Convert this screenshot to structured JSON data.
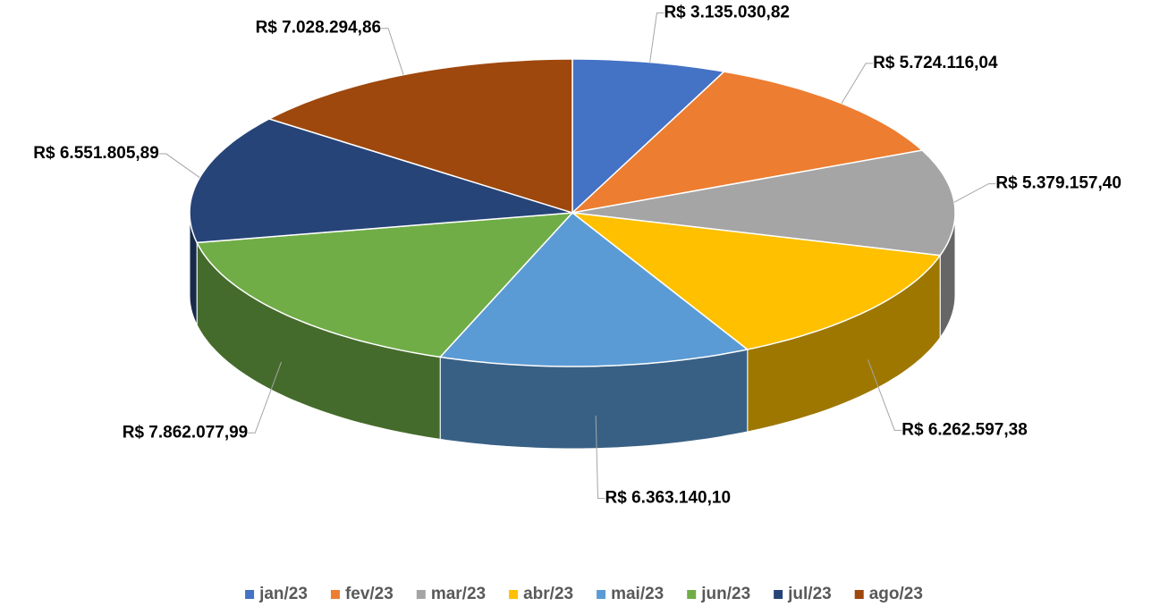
{
  "chart_data": {
    "type": "pie",
    "categories": [
      "jan/23",
      "fev/23",
      "mar/23",
      "abr/23",
      "mai/23",
      "jun/23",
      "jul/23",
      "ago/23"
    ],
    "values": [
      3135030.82,
      5724116.04,
      5379157.4,
      6262597.38,
      6363140.1,
      7862077.99,
      6551805.89,
      7028294.86
    ],
    "value_labels": [
      "R$ 3.135.030,82",
      "R$ 5.724.116,04",
      "R$ 5.379.157,40",
      "R$ 6.262.597,38",
      "R$ 6.363.140,10",
      "R$ 7.862.077,99",
      "R$ 6.551.805,89",
      "R$ 7.028.294,86"
    ],
    "colors": [
      "#4472c4",
      "#ed7d31",
      "#a5a5a5",
      "#ffc000",
      "#5b9bd5",
      "#70ad47",
      "#264478",
      "#9e480e"
    ],
    "legend": "bottom"
  }
}
